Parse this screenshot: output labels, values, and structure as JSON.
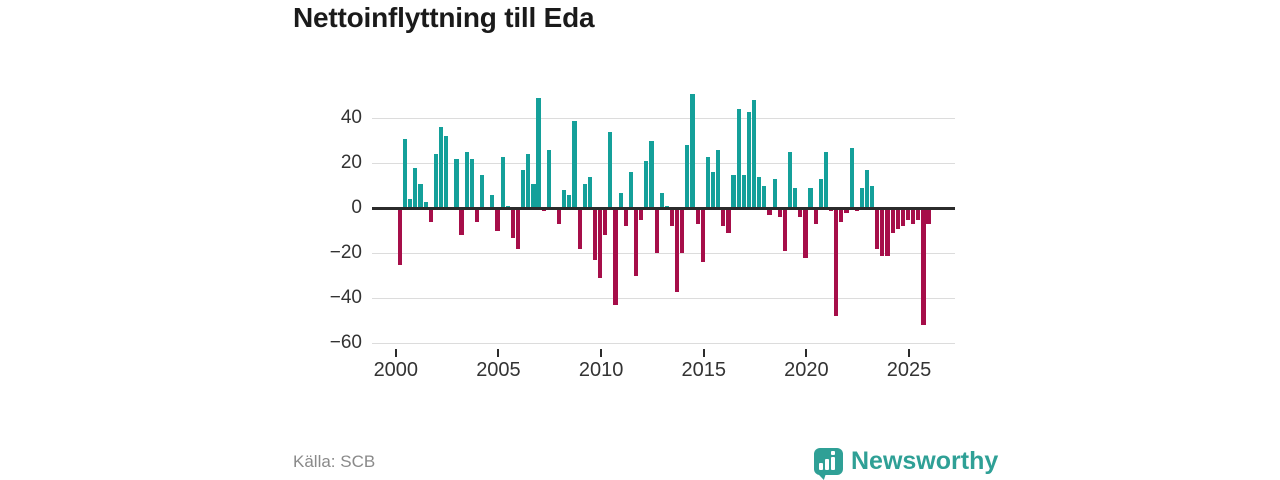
{
  "title": "Nettoinflyttning till Eda",
  "source": "Källa: SCB",
  "brand": {
    "name": "Newsworthy",
    "icon": "newsworthy-speech-bubble-bar-chart-icon"
  },
  "colors": {
    "positive": "#14a09a",
    "negative": "#a60e49",
    "axis_line": "#2b2b2b",
    "grid_line": "#dcdcdc",
    "tick_label": "#333333",
    "title_text": "#1a1a1a",
    "source_text": "#8a8a8a",
    "brand_teal": "#2fa096",
    "background": "#ffffff"
  },
  "chart_data": {
    "type": "bar",
    "title": "Nettoinflyttning till Eda",
    "x_unit": "quarter",
    "grid": "horizontal",
    "legend": "none",
    "ylim": [
      -60,
      55
    ],
    "yticks": [
      40,
      20,
      0,
      -20,
      -40,
      -60
    ],
    "y_tick_labels": [
      "40",
      "20",
      "0",
      "−20",
      "−40",
      "−60"
    ],
    "xticks": [
      2000,
      2005,
      2010,
      2015,
      2020,
      2025
    ],
    "x_tick_labels": [
      "2000",
      "2005",
      "2010",
      "2015",
      "2020",
      "2025"
    ],
    "x": [
      "2000-Q1",
      "2000-Q2",
      "2000-Q3",
      "2000-Q4",
      "2001-Q1",
      "2001-Q2",
      "2001-Q3",
      "2001-Q4",
      "2002-Q1",
      "2002-Q2",
      "2002-Q3",
      "2002-Q4",
      "2003-Q1",
      "2003-Q2",
      "2003-Q3",
      "2003-Q4",
      "2004-Q1",
      "2004-Q2",
      "2004-Q3",
      "2004-Q4",
      "2005-Q1",
      "2005-Q2",
      "2005-Q3",
      "2005-Q4",
      "2006-Q1",
      "2006-Q2",
      "2006-Q3",
      "2006-Q4",
      "2007-Q1",
      "2007-Q2",
      "2007-Q3",
      "2007-Q4",
      "2008-Q1",
      "2008-Q2",
      "2008-Q3",
      "2008-Q4",
      "2009-Q1",
      "2009-Q2",
      "2009-Q3",
      "2009-Q4",
      "2010-Q1",
      "2010-Q2",
      "2010-Q3",
      "2010-Q4",
      "2011-Q1",
      "2011-Q2",
      "2011-Q3",
      "2011-Q4",
      "2012-Q1",
      "2012-Q2",
      "2012-Q3",
      "2012-Q4",
      "2013-Q1",
      "2013-Q2",
      "2013-Q3",
      "2013-Q4",
      "2014-Q1",
      "2014-Q2",
      "2014-Q3",
      "2014-Q4",
      "2015-Q1",
      "2015-Q2",
      "2015-Q3",
      "2015-Q4",
      "2016-Q1",
      "2016-Q2",
      "2016-Q3",
      "2016-Q4",
      "2017-Q1",
      "2017-Q2",
      "2017-Q3",
      "2017-Q4",
      "2018-Q1",
      "2018-Q2",
      "2018-Q3",
      "2018-Q4",
      "2019-Q1",
      "2019-Q2",
      "2019-Q3",
      "2019-Q4",
      "2020-Q1",
      "2020-Q2",
      "2020-Q3",
      "2020-Q4",
      "2021-Q1",
      "2021-Q2",
      "2021-Q3",
      "2021-Q4",
      "2022-Q1",
      "2022-Q2",
      "2022-Q3",
      "2022-Q4",
      "2023-Q1",
      "2023-Q2",
      "2023-Q3",
      "2023-Q4",
      "2024-Q1",
      "2024-Q2",
      "2024-Q3",
      "2024-Q4",
      "2025-Q1",
      "2025-Q2",
      "2025-Q3",
      "2025-Q4"
    ],
    "values": [
      -25,
      31,
      4,
      18,
      11,
      3,
      -6,
      24,
      36,
      32,
      0,
      22,
      -12,
      25,
      22,
      -6,
      15,
      0,
      6,
      -10,
      23,
      1,
      -13,
      -18,
      17,
      24,
      11,
      49,
      -1,
      26,
      0,
      -7,
      8,
      6,
      39,
      -18,
      11,
      14,
      -23,
      -31,
      -12,
      34,
      -43,
      7,
      -8,
      16,
      -30,
      -5,
      21,
      30,
      -20,
      7,
      1,
      -8,
      -37,
      -20,
      28,
      51,
      -7,
      -24,
      23,
      16,
      26,
      -8,
      -11,
      15,
      44,
      15,
      43,
      48,
      14,
      10,
      -3,
      13,
      -4,
      -19,
      25,
      9,
      -4,
      -22,
      9,
      -7,
      13,
      25,
      -1,
      -48,
      -6,
      -2,
      27,
      -1,
      9,
      17,
      10,
      -18,
      -21,
      -21,
      -11,
      -9,
      -8,
      -5,
      -7,
      -5,
      -52,
      -7
    ]
  }
}
